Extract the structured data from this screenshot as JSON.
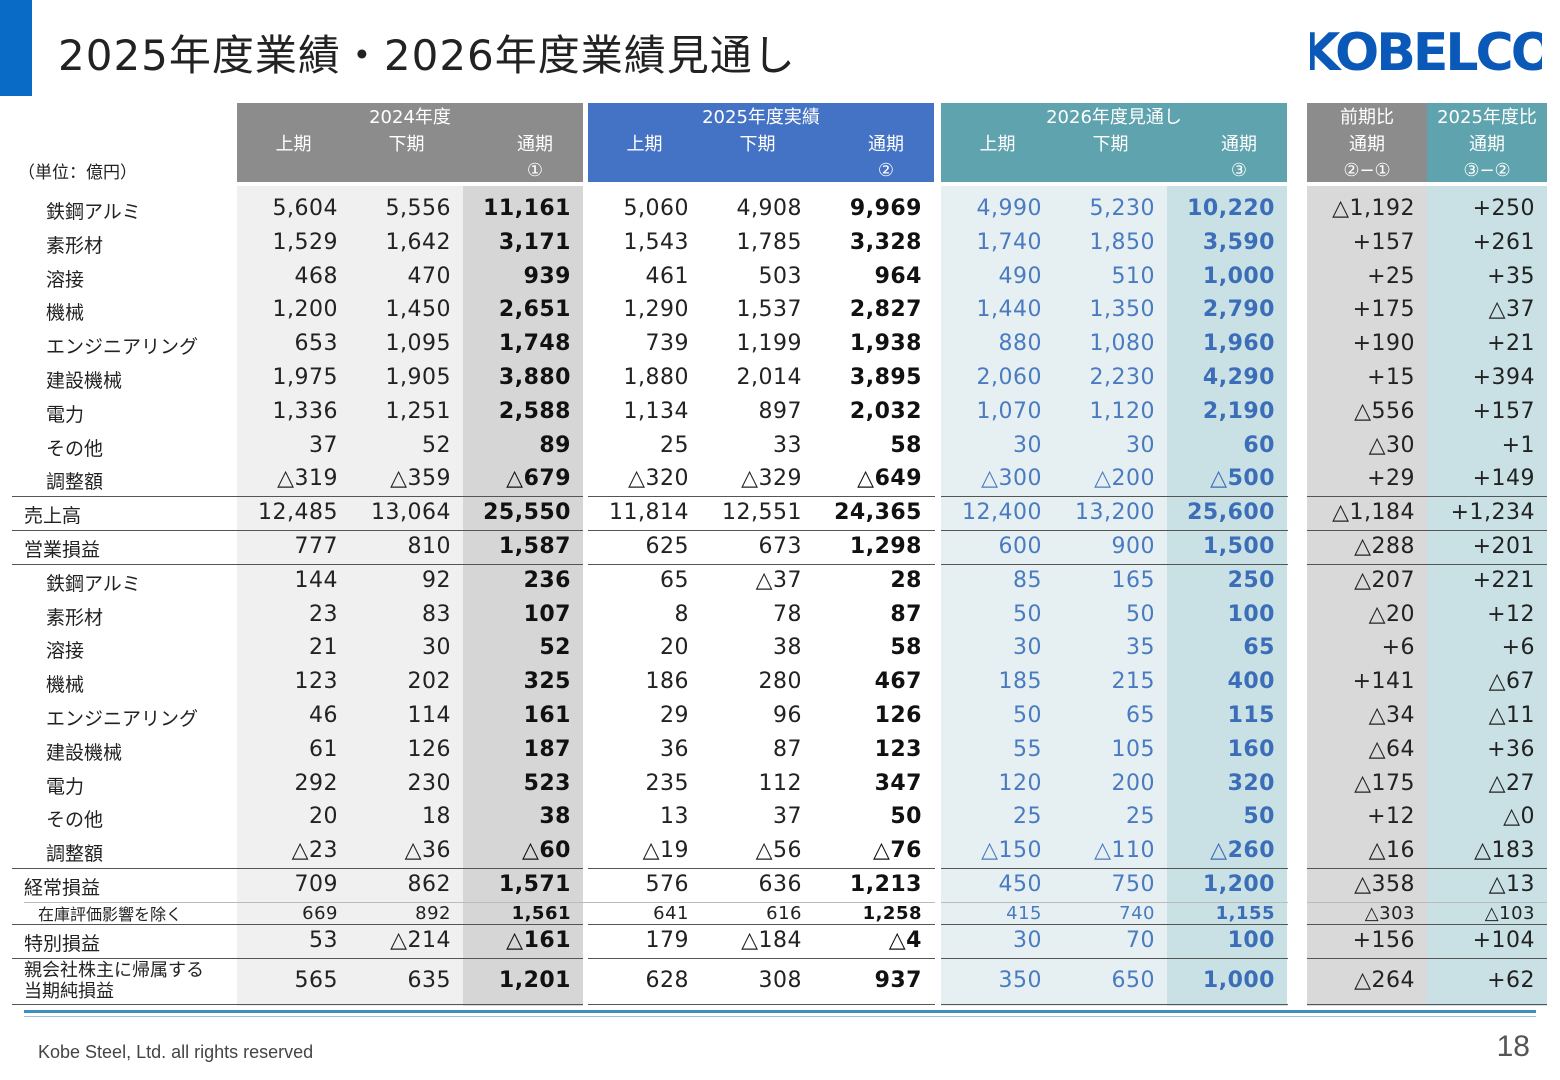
{
  "title": "2025年度業績・2026年度業績見通し",
  "logo_text": "KOBELCO",
  "unit_label": "（単位：億円）",
  "groups": {
    "g2024": "2024年度",
    "g2025": "2025年度実績",
    "g2026": "2026年度見通し",
    "yoy": "前期比",
    "vs2025": "2025年度比"
  },
  "col_headers": [
    {
      "l1": "上期",
      "l2": ""
    },
    {
      "l1": "下期",
      "l2": ""
    },
    {
      "l1": "通期",
      "l2": "①"
    },
    {
      "l1": "上期",
      "l2": ""
    },
    {
      "l1": "下期",
      "l2": ""
    },
    {
      "l1": "通期",
      "l2": "②"
    },
    {
      "l1": "上期",
      "l2": ""
    },
    {
      "l1": "下期",
      "l2": ""
    },
    {
      "l1": "通期",
      "l2": "③"
    },
    {
      "l1": "通期",
      "l2": "②−①"
    },
    {
      "l1": "通期",
      "l2": "③−②"
    }
  ],
  "rows": [
    {
      "label": "鉄鋼アルミ",
      "kind": "sub",
      "values": [
        "5,604",
        "5,556",
        "11,161",
        "5,060",
        "4,908",
        "9,969",
        "4,990",
        "5,230",
        "10,220",
        "△1,192",
        "+250"
      ]
    },
    {
      "label": "素形材",
      "kind": "sub",
      "values": [
        "1,529",
        "1,642",
        "3,171",
        "1,543",
        "1,785",
        "3,328",
        "1,740",
        "1,850",
        "3,590",
        "+157",
        "+261"
      ]
    },
    {
      "label": "溶接",
      "kind": "sub",
      "values": [
        "468",
        "470",
        "939",
        "461",
        "503",
        "964",
        "490",
        "510",
        "1,000",
        "+25",
        "+35"
      ]
    },
    {
      "label": "機械",
      "kind": "sub",
      "values": [
        "1,200",
        "1,450",
        "2,651",
        "1,290",
        "1,537",
        "2,827",
        "1,440",
        "1,350",
        "2,790",
        "+175",
        "△37"
      ]
    },
    {
      "label": "エンジニアリング",
      "kind": "sub",
      "values": [
        "653",
        "1,095",
        "1,748",
        "739",
        "1,199",
        "1,938",
        "880",
        "1,080",
        "1,960",
        "+190",
        "+21"
      ]
    },
    {
      "label": "建設機械",
      "kind": "sub",
      "values": [
        "1,975",
        "1,905",
        "3,880",
        "1,880",
        "2,014",
        "3,895",
        "2,060",
        "2,230",
        "4,290",
        "+15",
        "+394"
      ]
    },
    {
      "label": "電力",
      "kind": "sub",
      "values": [
        "1,336",
        "1,251",
        "2,588",
        "1,134",
        "897",
        "2,032",
        "1,070",
        "1,120",
        "2,190",
        "△556",
        "+157"
      ]
    },
    {
      "label": "その他",
      "kind": "sub",
      "values": [
        "37",
        "52",
        "89",
        "25",
        "33",
        "58",
        "30",
        "30",
        "60",
        "△30",
        "+1"
      ]
    },
    {
      "label": "調整額",
      "kind": "sub",
      "values": [
        "△319",
        "△359",
        "△679",
        "△320",
        "△329",
        "△649",
        "△300",
        "△200",
        "△500",
        "+29",
        "+149"
      ]
    },
    {
      "label": "売上高",
      "kind": "top",
      "values": [
        "12,485",
        "13,064",
        "25,550",
        "11,814",
        "12,551",
        "24,365",
        "12,400",
        "13,200",
        "25,600",
        "△1,184",
        "+1,234"
      ]
    },
    {
      "label": "営業損益",
      "kind": "top",
      "values": [
        "777",
        "810",
        "1,587",
        "625",
        "673",
        "1,298",
        "600",
        "900",
        "1,500",
        "△288",
        "+201"
      ]
    },
    {
      "label": "鉄鋼アルミ",
      "kind": "sub",
      "values": [
        "144",
        "92",
        "236",
        "65",
        "△37",
        "28",
        "85",
        "165",
        "250",
        "△207",
        "+221"
      ]
    },
    {
      "label": "素形材",
      "kind": "sub",
      "values": [
        "23",
        "83",
        "107",
        "8",
        "78",
        "87",
        "50",
        "50",
        "100",
        "△20",
        "+12"
      ]
    },
    {
      "label": "溶接",
      "kind": "sub",
      "values": [
        "21",
        "30",
        "52",
        "20",
        "38",
        "58",
        "30",
        "35",
        "65",
        "+6",
        "+6"
      ]
    },
    {
      "label": "機械",
      "kind": "sub",
      "values": [
        "123",
        "202",
        "325",
        "186",
        "280",
        "467",
        "185",
        "215",
        "400",
        "+141",
        "△67"
      ]
    },
    {
      "label": "エンジニアリング",
      "kind": "sub",
      "values": [
        "46",
        "114",
        "161",
        "29",
        "96",
        "126",
        "50",
        "65",
        "115",
        "△34",
        "△11"
      ]
    },
    {
      "label": "建設機械",
      "kind": "sub",
      "values": [
        "61",
        "126",
        "187",
        "36",
        "87",
        "123",
        "55",
        "105",
        "160",
        "△64",
        "+36"
      ]
    },
    {
      "label": "電力",
      "kind": "sub",
      "values": [
        "292",
        "230",
        "523",
        "235",
        "112",
        "347",
        "120",
        "200",
        "320",
        "△175",
        "△27"
      ]
    },
    {
      "label": "その他",
      "kind": "sub",
      "values": [
        "20",
        "18",
        "38",
        "13",
        "37",
        "50",
        "25",
        "25",
        "50",
        "+12",
        "△0"
      ]
    },
    {
      "label": "調整額",
      "kind": "sub",
      "values": [
        "△23",
        "△36",
        "△60",
        "△19",
        "△56",
        "△76",
        "△150",
        "△110",
        "△260",
        "△16",
        "△183"
      ]
    },
    {
      "label": "経常損益",
      "kind": "top",
      "values": [
        "709",
        "862",
        "1,571",
        "576",
        "636",
        "1,213",
        "450",
        "750",
        "1,200",
        "△358",
        "△13"
      ]
    },
    {
      "label": "在庫評価影響を除く",
      "kind": "small",
      "values": [
        "669",
        "892",
        "1,561",
        "641",
        "616",
        "1,258",
        "415",
        "740",
        "1,155",
        "△303",
        "△103"
      ]
    },
    {
      "label": "特別損益",
      "kind": "top",
      "values": [
        "53",
        "△214",
        "△161",
        "179",
        "△184",
        "△4",
        "30",
        "70",
        "100",
        "+156",
        "+104"
      ]
    },
    {
      "label": "親会社株主に帰属する\n当期純損益",
      "kind": "top2",
      "values": [
        "565",
        "635",
        "1,201",
        "628",
        "308",
        "937",
        "350",
        "650",
        "1,000",
        "△264",
        "+62"
      ]
    }
  ],
  "footer": "Kobe Steel, Ltd.   all rights reserved",
  "page_number": "18",
  "colors": {
    "accent": "#0a6bc6",
    "hdr2024": "#8c8c8c",
    "hdr2025": "#4472c4",
    "hdr2026": "#5ea3ad",
    "hdr_yoy": "#8c8c8c",
    "hdr_vs": "#5ea3ad",
    "logo": "#0a58b8"
  }
}
